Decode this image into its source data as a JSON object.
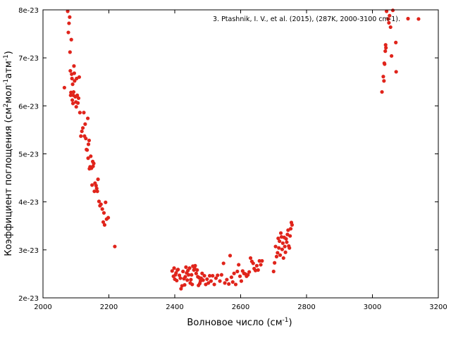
{
  "chart_data": {
    "type": "scatter",
    "xlabel": "Волновое число (см-1)",
    "xlabel_main": "Волновое число (см",
    "xlabel_sup": "-1",
    "xlabel_end": ")",
    "ylabel": "Коэффициент поглощения (см2мол-1атм-1)",
    "ylabel_a": "Коэффициент поглощения (см",
    "ylabel_sup1": "2",
    "ylabel_b": "мол",
    "ylabel_sup2": "-1",
    "ylabel_c": "атм",
    "ylabel_sup3": "-1",
    "ylabel_d": ")",
    "xlim": [
      2000,
      3200
    ],
    "ylim": [
      2e-23,
      8e-23
    ],
    "x_ticks": [
      {
        "value": 2000,
        "label": "2000"
      },
      {
        "value": 2200,
        "label": "2200"
      },
      {
        "value": 2400,
        "label": "2400"
      },
      {
        "value": 2600,
        "label": "2600"
      },
      {
        "value": 2800,
        "label": "2800"
      },
      {
        "value": 3000,
        "label": "3000"
      },
      {
        "value": 3200,
        "label": "3200"
      }
    ],
    "y_ticks": [
      {
        "value": 2e-23,
        "label": "2e-23"
      },
      {
        "value": 3e-23,
        "label": "3e-23"
      },
      {
        "value": 4e-23,
        "label": "4e-23"
      },
      {
        "value": 5e-23,
        "label": "5e-23"
      },
      {
        "value": 6e-23,
        "label": "6e-23"
      },
      {
        "value": 7e-23,
        "label": "7e-23"
      },
      {
        "value": 8e-23,
        "label": "8e-23"
      }
    ],
    "grid": false,
    "legend_position": "top-right",
    "series": [
      {
        "name": "3.  Ptashnik, I. V., et al.  (2015), (287K, 2000-3100 cm-1).",
        "color": "#e0241b",
        "points": [
          [
            2065,
            6.38e-23
          ],
          [
            2075,
            7.97e-23
          ],
          [
            2077,
            7.53e-23
          ],
          [
            2079,
            7.72e-23
          ],
          [
            2081,
            7.85e-23
          ],
          [
            2082,
            7.12e-23
          ],
          [
            2083,
            6.73e-23
          ],
          [
            2084,
            6.22e-23
          ],
          [
            2085,
            6.28e-23
          ],
          [
            2086,
            7.38e-23
          ],
          [
            2087,
            6.66e-23
          ],
          [
            2088,
            6.57e-23
          ],
          [
            2089,
            6.12e-23
          ],
          [
            2090,
            6.45e-23
          ],
          [
            2091,
            6.05e-23
          ],
          [
            2092,
            6.22e-23
          ],
          [
            2093,
            6.29e-23
          ],
          [
            2094,
            6.83e-23
          ],
          [
            2095,
            6.68e-23
          ],
          [
            2096,
            6.52e-23
          ],
          [
            2098,
            6.19e-23
          ],
          [
            2100,
            6.08e-23
          ],
          [
            2101,
            5.98e-23
          ],
          [
            2102,
            6.57e-23
          ],
          [
            2104,
            6.22e-23
          ],
          [
            2106,
            6.06e-23
          ],
          [
            2108,
            6.16e-23
          ],
          [
            2110,
            6.6e-23
          ],
          [
            2112,
            5.86e-23
          ],
          [
            2115,
            5.37e-23
          ],
          [
            2118,
            5.47e-23
          ],
          [
            2121,
            5.54e-23
          ],
          [
            2124,
            5.86e-23
          ],
          [
            2126,
            5.37e-23
          ],
          [
            2128,
            5.62e-23
          ],
          [
            2130,
            5.32e-23
          ],
          [
            2132,
            5.09e-23
          ],
          [
            2134,
            5.08e-23
          ],
          [
            2136,
            5.74e-23
          ],
          [
            2137,
            4.91e-23
          ],
          [
            2138,
            5.2e-23
          ],
          [
            2140,
            5.28e-23
          ],
          [
            2141,
            4.69e-23
          ],
          [
            2143,
            4.73e-23
          ],
          [
            2145,
            4.95e-23
          ],
          [
            2147,
            4.7e-23
          ],
          [
            2149,
            4.35e-23
          ],
          [
            2151,
            4.84e-23
          ],
          [
            2152,
            4.74e-23
          ],
          [
            2154,
            4.8e-23
          ],
          [
            2156,
            4.22e-23
          ],
          [
            2158,
            4.39e-23
          ],
          [
            2161,
            4.34e-23
          ],
          [
            2163,
            4.28e-23
          ],
          [
            2165,
            4.22e-23
          ],
          [
            2167,
            4.47e-23
          ],
          [
            2170,
            4.01e-23
          ],
          [
            2173,
            3.92e-23
          ],
          [
            2176,
            3.95e-23
          ],
          [
            2180,
            3.85e-23
          ],
          [
            2183,
            3.58e-23
          ],
          [
            2185,
            3.77e-23
          ],
          [
            2187,
            3.52e-23
          ],
          [
            2190,
            3.99e-23
          ],
          [
            2193,
            3.64e-23
          ],
          [
            2198,
            3.67e-23
          ],
          [
            2218,
            3.07e-23
          ],
          [
            2392,
            2.56e-23
          ],
          [
            2396,
            2.45e-23
          ],
          [
            2398,
            2.62e-23
          ],
          [
            2400,
            2.39e-23
          ],
          [
            2402,
            2.48e-23
          ],
          [
            2404,
            2.52e-23
          ],
          [
            2406,
            2.36e-23
          ],
          [
            2408,
            2.58e-23
          ],
          [
            2410,
            2.59e-23
          ],
          [
            2414,
            2.47e-23
          ],
          [
            2417,
            2.41e-23
          ],
          [
            2419,
            2.19e-23
          ],
          [
            2422,
            2.25e-23
          ],
          [
            2425,
            2.55e-23
          ],
          [
            2428,
            2.4e-23
          ],
          [
            2430,
            2.27e-23
          ],
          [
            2432,
            2.44e-23
          ],
          [
            2434,
            2.64e-23
          ],
          [
            2436,
            2.52e-23
          ],
          [
            2438,
            2.37e-23
          ],
          [
            2440,
            2.57e-23
          ],
          [
            2442,
            2.48e-23
          ],
          [
            2445,
            2.62e-23
          ],
          [
            2447,
            2.31e-23
          ],
          [
            2449,
            2.38e-23
          ],
          [
            2451,
            2.48e-23
          ],
          [
            2453,
            2.28e-23
          ],
          [
            2455,
            2.66e-23
          ],
          [
            2458,
            2.58e-23
          ],
          [
            2460,
            2.62e-23
          ],
          [
            2462,
            2.67e-23
          ],
          [
            2465,
            2.51e-23
          ],
          [
            2468,
            2.58e-23
          ],
          [
            2470,
            2.44e-23
          ],
          [
            2472,
            2.26e-23
          ],
          [
            2474,
            2.42e-23
          ],
          [
            2476,
            2.3e-23
          ],
          [
            2478,
            2.35e-23
          ],
          [
            2480,
            2.41e-23
          ],
          [
            2483,
            2.51e-23
          ],
          [
            2486,
            2.37e-23
          ],
          [
            2490,
            2.46e-23
          ],
          [
            2494,
            2.28e-23
          ],
          [
            2498,
            2.39e-23
          ],
          [
            2502,
            2.31e-23
          ],
          [
            2506,
            2.46e-23
          ],
          [
            2510,
            2.35e-23
          ],
          [
            2515,
            2.46e-23
          ],
          [
            2520,
            2.28e-23
          ],
          [
            2525,
            2.41e-23
          ],
          [
            2530,
            2.47e-23
          ],
          [
            2537,
            2.35e-23
          ],
          [
            2542,
            2.48e-23
          ],
          [
            2548,
            2.72e-23
          ],
          [
            2552,
            2.31e-23
          ],
          [
            2558,
            2.38e-23
          ],
          [
            2564,
            2.29e-23
          ],
          [
            2568,
            2.88e-23
          ],
          [
            2572,
            2.43e-23
          ],
          [
            2576,
            2.33e-23
          ],
          [
            2580,
            2.51e-23
          ],
          [
            2585,
            2.28e-23
          ],
          [
            2590,
            2.55e-23
          ],
          [
            2594,
            2.69e-23
          ],
          [
            2598,
            2.45e-23
          ],
          [
            2602,
            2.35e-23
          ],
          [
            2606,
            2.56e-23
          ],
          [
            2610,
            2.51e-23
          ],
          [
            2614,
            2.5e-23
          ],
          [
            2618,
            2.45e-23
          ],
          [
            2622,
            2.48e-23
          ],
          [
            2626,
            2.54e-23
          ],
          [
            2630,
            2.83e-23
          ],
          [
            2634,
            2.76e-23
          ],
          [
            2638,
            2.72e-23
          ],
          [
            2641,
            2.61e-23
          ],
          [
            2645,
            2.57e-23
          ],
          [
            2649,
            2.67e-23
          ],
          [
            2653,
            2.58e-23
          ],
          [
            2657,
            2.77e-23
          ],
          [
            2661,
            2.69e-23
          ],
          [
            2665,
            2.77e-23
          ],
          [
            2700,
            2.55e-23
          ],
          [
            2703,
            2.73e-23
          ],
          [
            2706,
            3.07e-23
          ],
          [
            2709,
            2.86e-23
          ],
          [
            2712,
            2.94e-23
          ],
          [
            2714,
            3.24e-23
          ],
          [
            2716,
            3.04e-23
          ],
          [
            2718,
            3.18e-23
          ],
          [
            2720,
            2.89e-23
          ],
          [
            2722,
            3.35e-23
          ],
          [
            2724,
            3.27e-23
          ],
          [
            2726,
            3.01e-23
          ],
          [
            2728,
            3.14e-23
          ],
          [
            2730,
            2.83e-23
          ],
          [
            2732,
            3.26e-23
          ],
          [
            2734,
            3.07e-23
          ],
          [
            2736,
            2.95e-23
          ],
          [
            2738,
            3.23e-23
          ],
          [
            2740,
            3.16e-23
          ],
          [
            2742,
            3.32e-23
          ],
          [
            2744,
            3.41e-23
          ],
          [
            2746,
            3.08e-23
          ],
          [
            2748,
            3.04e-23
          ],
          [
            2750,
            3.29e-23
          ],
          [
            2752,
            3.44e-23
          ],
          [
            2754,
            3.57e-23
          ],
          [
            2756,
            3.52e-23
          ],
          [
            3029,
            6.29e-23
          ],
          [
            3033,
            6.61e-23
          ],
          [
            3035,
            6.52e-23
          ],
          [
            3036,
            6.89e-23
          ],
          [
            3037,
            6.87e-23
          ],
          [
            3039,
            7.14e-23
          ],
          [
            3040,
            7.27e-23
          ],
          [
            3041,
            7.21e-23
          ],
          [
            3043,
            7.97e-23
          ],
          [
            3048,
            7.81e-23
          ],
          [
            3050,
            7.73e-23
          ],
          [
            3052,
            7.88e-23
          ],
          [
            3055,
            7.64e-23
          ],
          [
            3058,
            7.04e-23
          ],
          [
            3062,
            7.99e-23
          ],
          [
            3071,
            7.32e-23
          ],
          [
            3072,
            6.71e-23
          ],
          [
            3140,
            7.81e-23
          ]
        ]
      }
    ]
  }
}
